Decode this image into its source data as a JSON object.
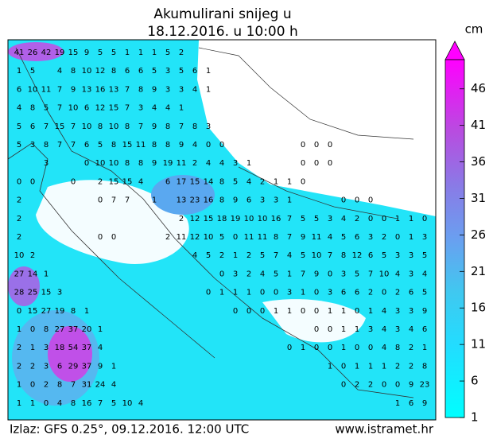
{
  "header": {
    "title_line1": "Akumulirani snijeg u",
    "title_line2": "18.12.2016. u 10:00 h"
  },
  "colorbar": {
    "unit": "cm",
    "lim": [
      1,
      50
    ],
    "ticks": [
      1,
      6,
      11,
      16,
      21,
      26,
      31,
      36,
      41,
      46
    ]
  },
  "grid": {
    "rows": [
      [
        41,
        26,
        42,
        19,
        15,
        9,
        5,
        5,
        1,
        1,
        1,
        5,
        2
      ],
      [
        1,
        5,
        null,
        4,
        8,
        10,
        12,
        8,
        6,
        6,
        5,
        3,
        5,
        6,
        1
      ],
      [
        6,
        10,
        11,
        7,
        9,
        13,
        16,
        13,
        7,
        8,
        9,
        3,
        3,
        4,
        1
      ],
      [
        4,
        8,
        5,
        7,
        10,
        6,
        12,
        15,
        7,
        3,
        4,
        4,
        1
      ],
      [
        5,
        6,
        7,
        15,
        7,
        10,
        8,
        10,
        8,
        7,
        9,
        8,
        7,
        8,
        3
      ],
      [
        5,
        3,
        8,
        7,
        7,
        6,
        5,
        8,
        15,
        11,
        8,
        8,
        9,
        4,
        0,
        0,
        null,
        null,
        null,
        null,
        null,
        0,
        0,
        0
      ],
      [
        null,
        null,
        3,
        null,
        null,
        0,
        10,
        10,
        8,
        8,
        9,
        19,
        11,
        2,
        4,
        4,
        3,
        1,
        null,
        null,
        null,
        0,
        0,
        0
      ],
      [
        0,
        0,
        null,
        null,
        0,
        null,
        2,
        15,
        15,
        4,
        null,
        6,
        17,
        15,
        14,
        8,
        5,
        4,
        2,
        1,
        1,
        0
      ],
      [
        2,
        null,
        null,
        null,
        null,
        null,
        0,
        7,
        7,
        null,
        1,
        null,
        13,
        23,
        16,
        8,
        9,
        6,
        3,
        3,
        1,
        null,
        null,
        null,
        0,
        0,
        0
      ],
      [
        2,
        null,
        null,
        null,
        null,
        null,
        null,
        null,
        null,
        null,
        null,
        null,
        2,
        12,
        15,
        18,
        19,
        10,
        10,
        16,
        7,
        5,
        5,
        3,
        4,
        2,
        0,
        0,
        1,
        1,
        0
      ],
      [
        2,
        null,
        null,
        null,
        null,
        null,
        0,
        0,
        null,
        null,
        null,
        2,
        11,
        12,
        10,
        5,
        0,
        11,
        11,
        8,
        7,
        9,
        11,
        4,
        5,
        6,
        3,
        2,
        0,
        1,
        3
      ],
      [
        10,
        2,
        null,
        null,
        null,
        null,
        null,
        null,
        null,
        null,
        null,
        null,
        null,
        4,
        5,
        2,
        1,
        2,
        5,
        7,
        4,
        5,
        10,
        7,
        8,
        12,
        6,
        5,
        3,
        3,
        5
      ],
      [
        27,
        14,
        1,
        null,
        null,
        null,
        null,
        null,
        null,
        null,
        null,
        null,
        null,
        null,
        null,
        0,
        3,
        2,
        4,
        5,
        1,
        7,
        9,
        0,
        3,
        5,
        7,
        10,
        4,
        3,
        4
      ],
      [
        28,
        25,
        15,
        3,
        null,
        null,
        null,
        null,
        null,
        null,
        null,
        null,
        null,
        null,
        0,
        1,
        1,
        1,
        0,
        0,
        3,
        1,
        0,
        3,
        6,
        6,
        2,
        0,
        2,
        6,
        5
      ],
      [
        0,
        15,
        27,
        19,
        8,
        1,
        null,
        null,
        null,
        null,
        null,
        null,
        null,
        null,
        null,
        null,
        0,
        0,
        0,
        1,
        1,
        0,
        0,
        1,
        1,
        0,
        1,
        4,
        3,
        3,
        9
      ],
      [
        1,
        0,
        8,
        27,
        37,
        20,
        1,
        null,
        null,
        null,
        null,
        null,
        null,
        null,
        null,
        null,
        null,
        null,
        null,
        null,
        null,
        null,
        0,
        0,
        1,
        1,
        3,
        4,
        3,
        4,
        6
      ],
      [
        2,
        1,
        3,
        18,
        54,
        37,
        4,
        null,
        null,
        null,
        null,
        null,
        null,
        null,
        null,
        null,
        null,
        null,
        null,
        null,
        0,
        1,
        0,
        0,
        1,
        0,
        0,
        4,
        8,
        2,
        1
      ],
      [
        2,
        2,
        3,
        6,
        29,
        37,
        9,
        1,
        null,
        null,
        null,
        null,
        null,
        null,
        null,
        null,
        null,
        null,
        null,
        null,
        null,
        null,
        null,
        1,
        0,
        1,
        1,
        1,
        2,
        2,
        8
      ],
      [
        1,
        0,
        2,
        8,
        7,
        31,
        24,
        4,
        null,
        null,
        null,
        null,
        null,
        null,
        null,
        null,
        null,
        null,
        null,
        null,
        null,
        null,
        null,
        null,
        0,
        2,
        2,
        0,
        0,
        9,
        23
      ],
      [
        1,
        1,
        0,
        4,
        8,
        16,
        7,
        5,
        10,
        4,
        null,
        null,
        null,
        null,
        null,
        null,
        null,
        null,
        null,
        null,
        null,
        null,
        null,
        null,
        null,
        null,
        null,
        null,
        1,
        6,
        9
      ]
    ]
  },
  "footer": {
    "source": "Izlaz: GFS 0.25°,  09.12.2016. 12:00 UTC",
    "site": "www.istramet.hr"
  }
}
